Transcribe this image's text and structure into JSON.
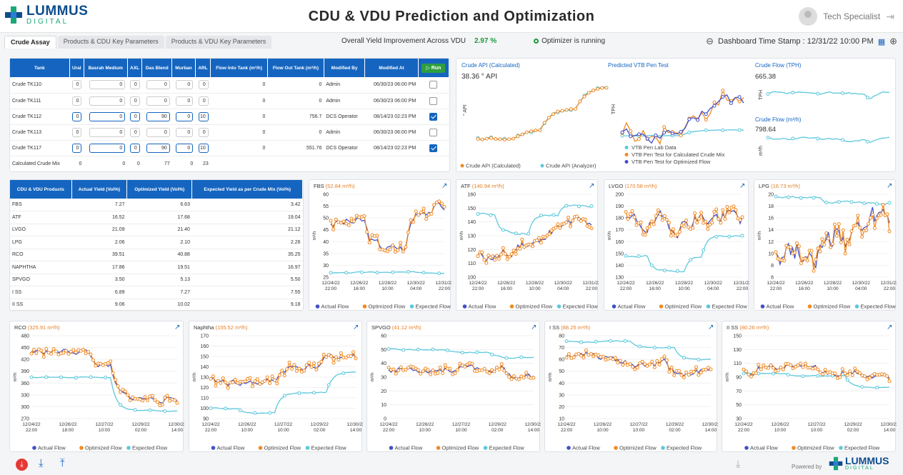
{
  "header": {
    "logo_big": "LUMMUS",
    "logo_small": "DIGITAL",
    "title": "CDU & VDU Prediction and Optimization",
    "user": "Tech Specialist"
  },
  "tabs": [
    "Crude Assay",
    "Products & CDU Key Parameters",
    "Products & VDU Key Parameters"
  ],
  "yield": {
    "label": "Overall Yield Improvement Across VDU",
    "value": "2.97 %",
    "optimizer": "Optimizer is running"
  },
  "timestamp": "Dashboard Time Stamp : 12/31/22 10:00 PM",
  "crude_table": {
    "headers": [
      "Tank",
      "Ural",
      "Basrah Medium",
      "AXL",
      "Das Blend",
      "Murban",
      "ARL",
      "Flow Into Tank (m³/h)",
      "Flow Out Tank (m³/h)",
      "Modified By",
      "Modified At"
    ],
    "run": "Run",
    "rows": [
      {
        "tank": "Crude TK110",
        "vals": [
          "0",
          "0",
          "0",
          "0",
          "0",
          "0"
        ],
        "fin": "0",
        "fout": "0",
        "by": "Admin",
        "at": "06/30/23 06:00 PM",
        "active": false
      },
      {
        "tank": "Crude TK111",
        "vals": [
          "0",
          "0",
          "0",
          "0",
          "0",
          "0"
        ],
        "fin": "0",
        "fout": "0",
        "by": "Admin",
        "at": "06/30/23 06:00 PM",
        "active": false
      },
      {
        "tank": "Crude TK112",
        "vals": [
          "0",
          "0",
          "0",
          "90",
          "0",
          "10"
        ],
        "fin": "0",
        "fout": "756.7",
        "by": "DCS Operator",
        "at": "08/14/23 02:23 PM",
        "active": true
      },
      {
        "tank": "Crude TK113",
        "vals": [
          "0",
          "0",
          "0",
          "0",
          "0",
          "0"
        ],
        "fin": "0",
        "fout": "0",
        "by": "Admin",
        "at": "06/30/23 06:00 PM",
        "active": false
      },
      {
        "tank": "Crude TK117",
        "vals": [
          "0",
          "0",
          "0",
          "90",
          "0",
          "10"
        ],
        "fin": "0",
        "fout": "551.76",
        "by": "DCS Operator",
        "at": "08/14/23 02:23 PM",
        "active": true
      }
    ],
    "calc": {
      "label": "Calculated Crude Mix",
      "vals": [
        "0",
        "0",
        "0",
        "77",
        "0",
        "23"
      ]
    }
  },
  "yield_table": {
    "headers": [
      "CDU & VDU Products",
      "Actual Yield (Vol%)",
      "Optimized Yield (Vol%)",
      "Expected Yield as per Crude Mix (Vol%)"
    ],
    "rows": [
      [
        "FBS",
        "7.27",
        "6.63",
        "3.42"
      ],
      [
        "ATF",
        "16.52",
        "17.68",
        "19.04"
      ],
      [
        "LVGO",
        "21.09",
        "21.40",
        "21.12"
      ],
      [
        "LPG",
        "2.06",
        "2.10",
        "2.26"
      ],
      [
        "RCO",
        "39.51",
        "40.88",
        "35.25"
      ],
      [
        "NAPHTHA",
        "17.86",
        "19.51",
        "16.97"
      ],
      [
        "SPVGO",
        "3.50",
        "5.13",
        "5.50"
      ],
      [
        "I SS",
        "6.89",
        "7.27",
        "7.55"
      ],
      [
        "II SS",
        "9.06",
        "10.02",
        "9.18"
      ]
    ]
  },
  "crude_api": {
    "title": "Crude API (Calculated)",
    "value": "38.36 ° API",
    "ylabel": "° API",
    "legend": [
      "Crude API (Calculated)",
      "Crude API (Analyzer)"
    ]
  },
  "vtb": {
    "title": "Predicted VTB Pen Test",
    "ylabel": "TPH",
    "legend": [
      "VTB Pen Lab Data",
      "VTB Pen Test for Calculated Crude Mix",
      "VTB Pen Test for Optimized Flow"
    ]
  },
  "crude_flow": {
    "t1": "Crude Flow (TPH)",
    "v1": "665.38",
    "y1": "TPH",
    "t2": "Crude Flow (m³/h)",
    "v2": "798.64",
    "y2": "m³/h"
  },
  "colors": {
    "actual": "#3f51c9",
    "optimized": "#f08a24",
    "expected": "#5cc8dc",
    "primary": "#1565c0"
  },
  "legend_labels": [
    "Actual Flow",
    "Optimized Flow",
    "Expected Flow"
  ],
  "charts_row1": [
    {
      "id": "fbs",
      "name": "FBS",
      "value": "52.84 m³/h",
      "yticks": [
        "60",
        "55",
        "50",
        "45",
        "40",
        "35",
        "30",
        "25"
      ],
      "xticks": [
        "12/24/22 22:00",
        "12/26/22 16:00",
        "12/28/22 10:00",
        "12/30/22 04:00",
        "12/31/22 22:00"
      ]
    },
    {
      "id": "atf",
      "name": "ATF",
      "value": "140.94 m³/h",
      "yticks": [
        "160",
        "150",
        "140",
        "130",
        "120",
        "110",
        "100"
      ],
      "xticks": [
        "12/24/22 22:00",
        "12/26/22 16:00",
        "12/28/22 10:00",
        "12/30/22 04:00",
        "12/31/22 22:00"
      ]
    },
    {
      "id": "lvgo",
      "name": "LVGO",
      "value": "170.58 m³/h",
      "yticks": [
        "200",
        "190",
        "180",
        "170",
        "160",
        "150",
        "140",
        "130"
      ],
      "xticks": [
        "12/24/22 22:00",
        "12/26/22 16:00",
        "12/28/22 10:00",
        "12/30/22 04:00",
        "12/31/22 22:00"
      ]
    },
    {
      "id": "lpg",
      "name": "LPG",
      "value": "16.73 m³/h",
      "yticks": [
        "20",
        "18",
        "16",
        "14",
        "12",
        "10",
        "8",
        "6"
      ],
      "xticks": [
        "12/24/22 22:00",
        "12/26/22 16:00",
        "12/28/22 10:00",
        "12/30/22 04:00",
        "12/31/22 22:00"
      ]
    }
  ],
  "charts_row2": [
    {
      "id": "rco",
      "name": "RCO",
      "value": "325.91 m³/h",
      "yticks": [
        "480",
        "450",
        "420",
        "390",
        "360",
        "330",
        "300",
        "270"
      ],
      "xticks": [
        "12/24/22 22:00",
        "12/26/22 18:00",
        "12/27/22 10:00",
        "12/29/22 02:00",
        "12/30/22 14:00"
      ]
    },
    {
      "id": "naphtha",
      "name": "Naphtha",
      "value": "155.52 m³/h",
      "yticks": [
        "170",
        "160",
        "150",
        "140",
        "130",
        "120",
        "110",
        "100",
        "90"
      ],
      "xticks": [
        "12/24/22 22:00",
        "12/26/22 10:00",
        "12/27/22 10:00",
        "12/29/22 02:00",
        "12/30/22 14:00"
      ]
    },
    {
      "id": "spvgo",
      "name": "SPVGO",
      "value": "41.12 m³/h",
      "yticks": [
        "60",
        "50",
        "40",
        "30",
        "20",
        "10",
        "0"
      ],
      "xticks": [
        "12/24/22 22:00",
        "12/26/22 10:00",
        "12/27/22 10:00",
        "12/29/22 02:00",
        "12/30/22 14:00"
      ]
    },
    {
      "id": "iss",
      "name": "I SS",
      "value": "88.25 m³/h",
      "yticks": [
        "80",
        "70",
        "60",
        "50",
        "40",
        "30",
        "20",
        "10"
      ],
      "xticks": [
        "12/24/22 22:00",
        "12/26/22 10:00",
        "12/27/22 10:00",
        "12/29/22 02:00",
        "12/30/22 14:00"
      ]
    },
    {
      "id": "iiss",
      "name": "II SS",
      "value": "80.26 m³/h",
      "yticks": [
        "150",
        "130",
        "110",
        "90",
        "70",
        "50",
        "30"
      ],
      "xticks": [
        "12/24/22 22:00",
        "12/26/22 10:00",
        "12/27/22 10:00",
        "12/29/22 02:00",
        "12/30/22 14:00"
      ]
    }
  ],
  "footer": {
    "powered": "Powered by"
  }
}
